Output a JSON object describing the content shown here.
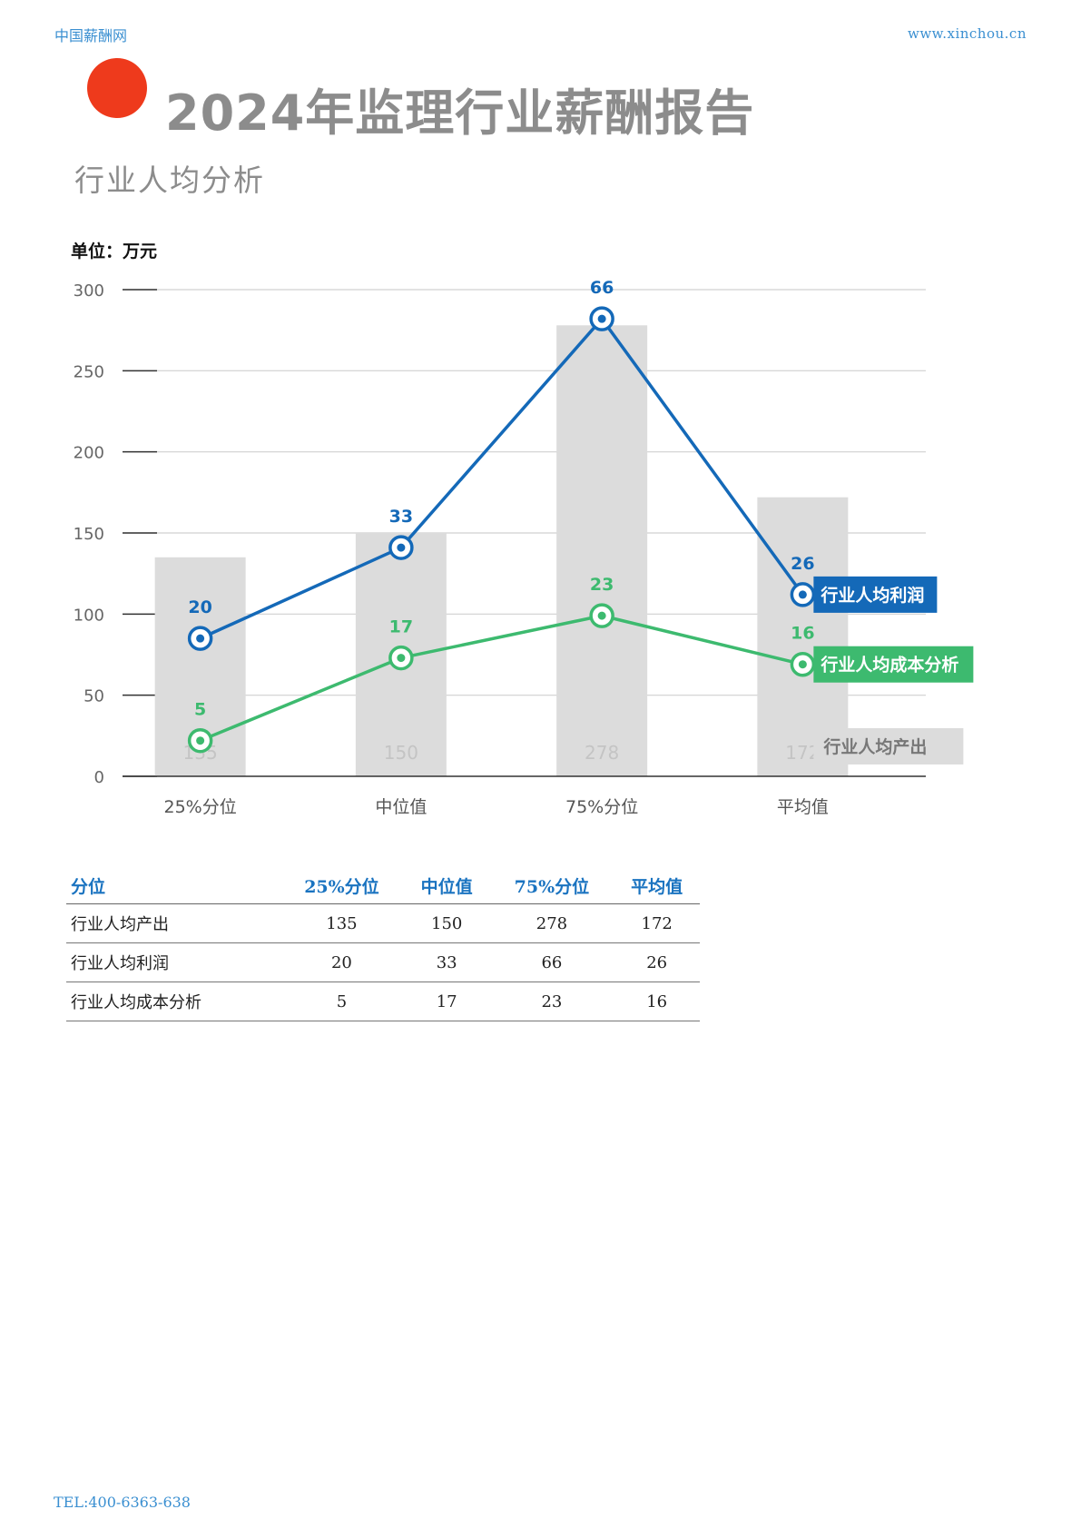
{
  "header": {
    "site": "中国薪酬网",
    "url": "www.xinchou.cn"
  },
  "title": "2024年监理行业薪酬报告",
  "subtitle": "行业人均分析",
  "unit": "单位：万元",
  "colors": {
    "bar": "#dcdcdc",
    "profit": "#1469b8",
    "cost": "#3dba6f",
    "brand_dot": "#ee3a1c"
  },
  "chart_data": {
    "type": "bar",
    "categories": [
      "25%分位",
      "中位值",
      "75%分位",
      "平均值"
    ],
    "ylim": [
      0,
      300
    ],
    "yticks": [
      0,
      50,
      100,
      150,
      200,
      250,
      300
    ],
    "grid": true,
    "series": [
      {
        "name": "行业人均产出",
        "type": "bar",
        "values": [
          135,
          150,
          278,
          172
        ]
      },
      {
        "name": "行业人均利润",
        "type": "line",
        "labels": [
          20,
          33,
          66,
          26
        ],
        "values": [
          85,
          141,
          282,
          112
        ]
      },
      {
        "name": "行业人均成本分析",
        "type": "line",
        "labels": [
          5,
          17,
          23,
          16
        ],
        "values": [
          22,
          73,
          99,
          69
        ]
      }
    ]
  },
  "table": {
    "header": [
      "分位",
      "25%分位",
      "中位值",
      "75%分位",
      "平均值"
    ],
    "rows": [
      {
        "label": "行业人均产出",
        "values": [
          "135",
          "150",
          "278",
          "172"
        ]
      },
      {
        "label": "行业人均利润",
        "values": [
          "20",
          "33",
          "66",
          "26"
        ]
      },
      {
        "label": "行业人均成本分析",
        "values": [
          "5",
          "17",
          "23",
          "16"
        ]
      }
    ]
  },
  "footer": "TEL:400-6363-638"
}
